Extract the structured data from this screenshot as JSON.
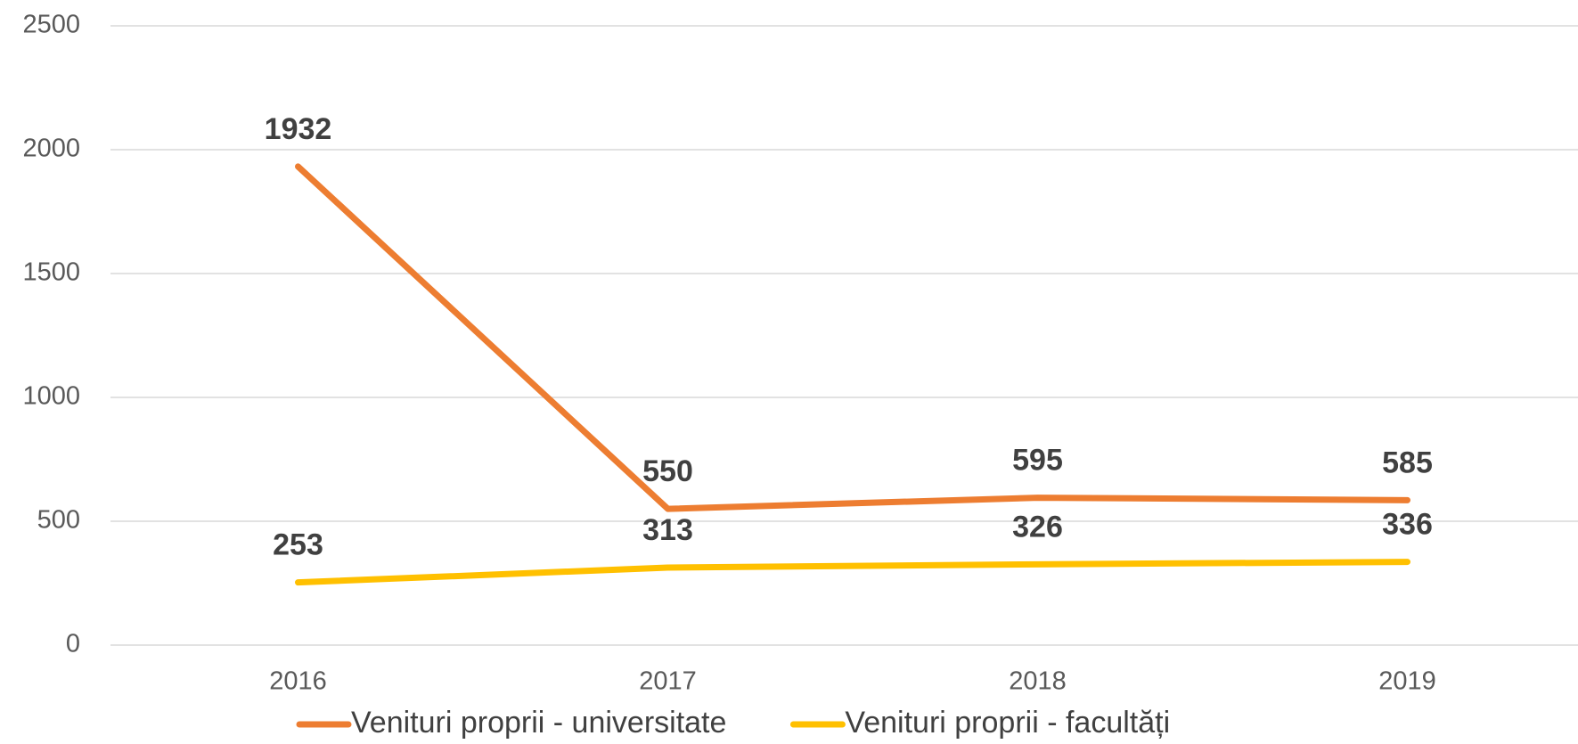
{
  "chart_data": {
    "type": "line",
    "categories": [
      "2016",
      "2017",
      "2018",
      "2019"
    ],
    "series": [
      {
        "name": "Venituri proprii - universitate",
        "color": "#ed7d31",
        "values": [
          1932,
          550,
          595,
          585
        ]
      },
      {
        "name": "Venituri proprii - facultăți",
        "color": "#ffc000",
        "values": [
          253,
          313,
          326,
          336
        ]
      }
    ],
    "ylim": [
      0,
      2500
    ],
    "yticks": [
      0,
      500,
      1000,
      1500,
      2000,
      2500
    ],
    "grid": true,
    "legend": "bottom"
  }
}
